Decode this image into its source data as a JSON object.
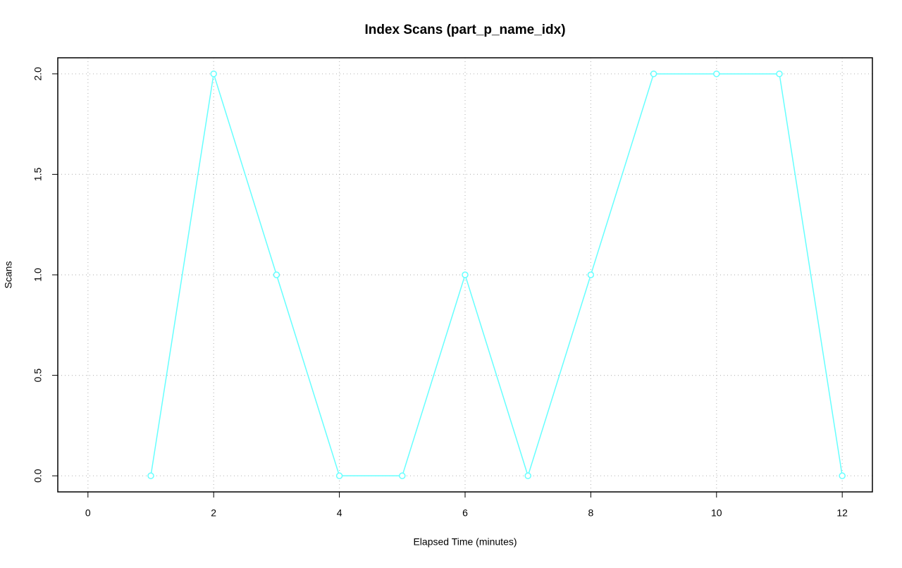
{
  "chart_data": {
    "type": "line",
    "title": "Index Scans (part_p_name_idx)",
    "x_label": "Elapsed Time (minutes)",
    "y_label": "Scans",
    "x": [
      1,
      2,
      3,
      4,
      5,
      6,
      7,
      8,
      9,
      10,
      11,
      12
    ],
    "series": [
      {
        "name": "part_p_name_idx",
        "color": "#66ffff",
        "values": [
          0,
          2,
          1,
          0,
          0,
          1,
          0,
          1,
          2,
          2,
          2,
          0
        ]
      }
    ],
    "xlim": [
      -0.48,
      12.48
    ],
    "ylim": [
      -0.08,
      2.08
    ],
    "xticks": [
      0,
      2,
      4,
      6,
      8,
      10,
      12
    ],
    "yticks": [
      {
        "value": 0,
        "label": "0.0"
      },
      {
        "value": 0.5,
        "label": "0.5"
      },
      {
        "value": 1,
        "label": "1.0"
      },
      {
        "value": 1.5,
        "label": "1.5"
      },
      {
        "value": 2,
        "label": "2.0"
      }
    ],
    "grid": true
  }
}
